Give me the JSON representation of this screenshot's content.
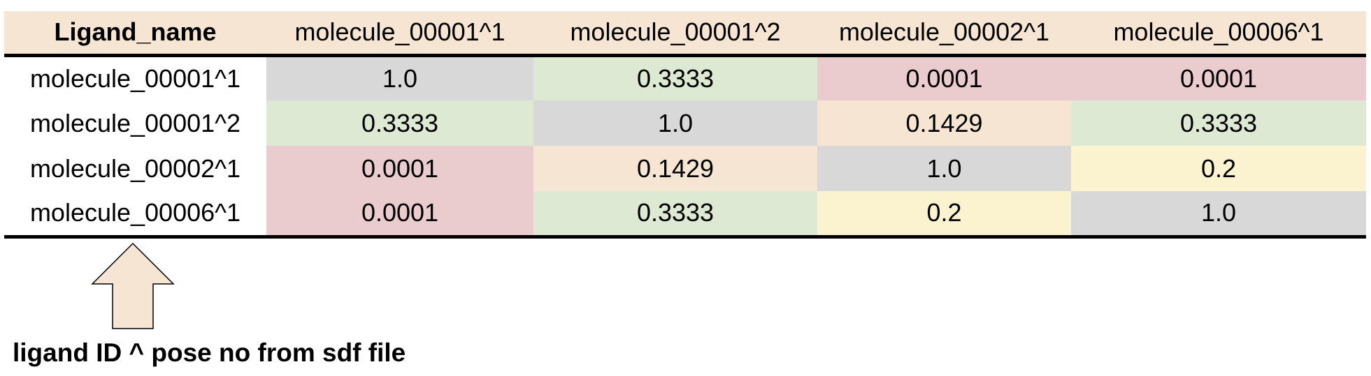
{
  "table": {
    "corner_header": "Ligand_name",
    "columns": [
      "molecule_00001^1",
      "molecule_00001^2",
      "molecule_00002^1",
      "molecule_00006^1"
    ],
    "rows": [
      {
        "label": "molecule_00001^1",
        "values": [
          "1.0",
          "0.3333",
          "0.0001",
          "0.0001"
        ]
      },
      {
        "label": "molecule_00001^2",
        "values": [
          "0.3333",
          "1.0",
          "0.1429",
          "0.3333"
        ]
      },
      {
        "label": "molecule_00002^1",
        "values": [
          "0.0001",
          "0.1429",
          "1.0",
          "0.2"
        ]
      },
      {
        "label": "molecule_00006^1",
        "values": [
          "0.0001",
          "0.3333",
          "0.2",
          "1.0"
        ]
      }
    ]
  },
  "colors": {
    "header_bg": "#f6e5d2",
    "diagonal_grey": "#d8d8d8",
    "green": "#dde9d3",
    "red": "#ebccce",
    "peach": "#f6e5d2",
    "yellow": "#fbf2cf"
  },
  "annotation": {
    "arrow_icon": "up-arrow-icon",
    "text": "ligand ID ^ pose no from sdf file"
  }
}
